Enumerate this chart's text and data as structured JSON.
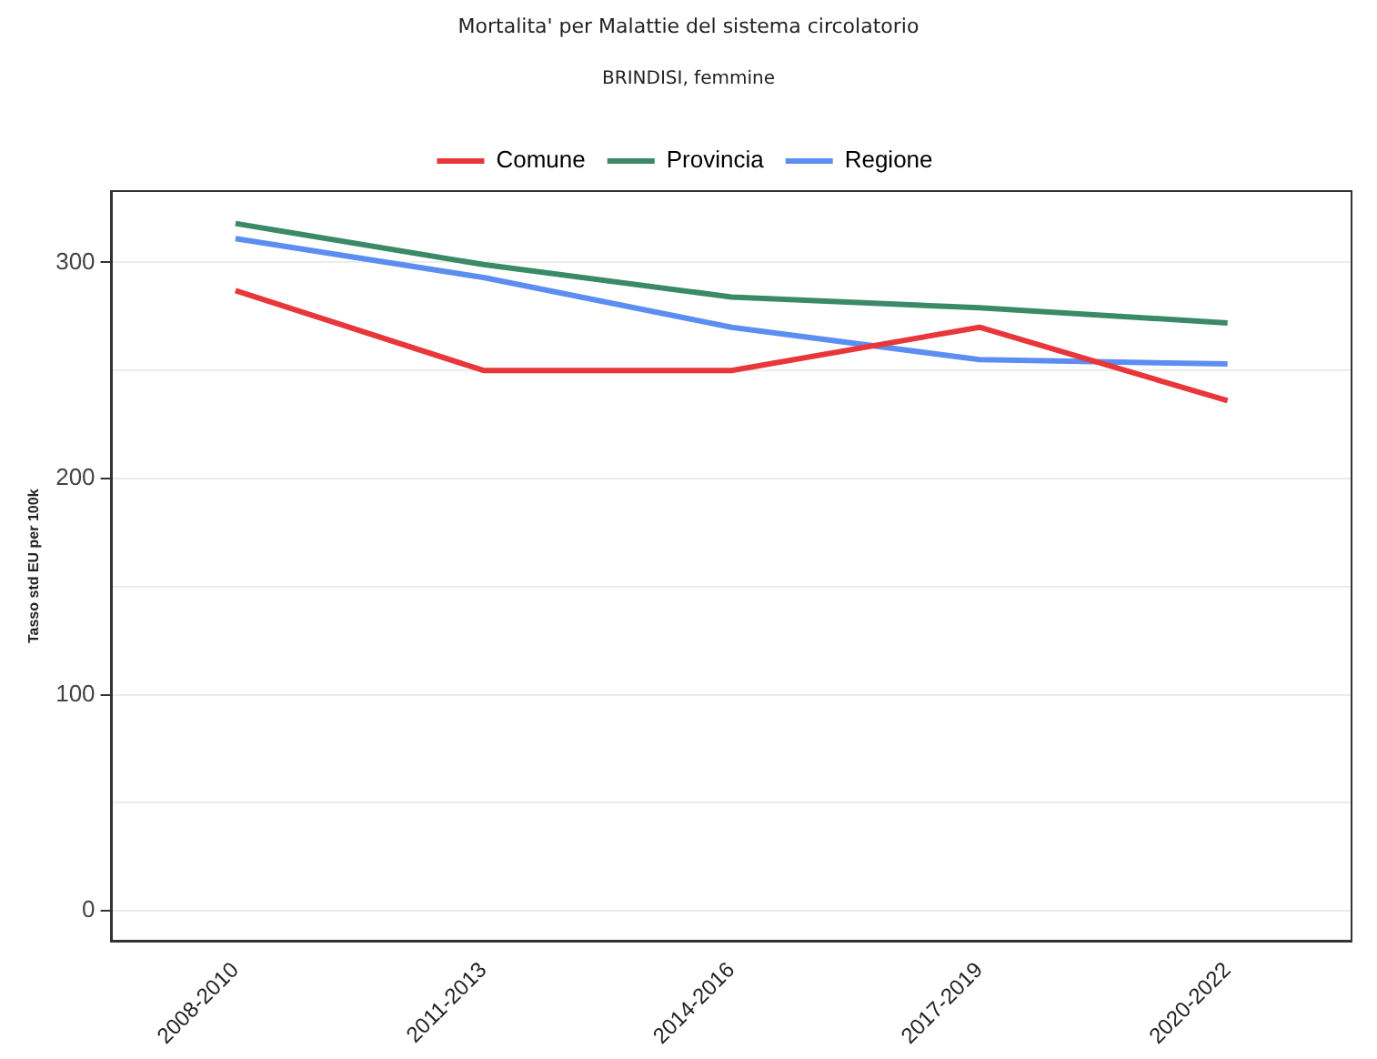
{
  "chart_data": {
    "type": "line",
    "title": "Mortalita' per Malattie del sistema circolatorio",
    "subtitle": "BRINDISI, femmine",
    "ylabel": "Tasso std EU per 100k",
    "categories": [
      "2008-2010",
      "2011-2013",
      "2014-2016",
      "2017-2019",
      "2020-2022"
    ],
    "series": [
      {
        "name": "Comune",
        "color": "#e8373a",
        "values": [
          287,
          250,
          250,
          270,
          236
        ]
      },
      {
        "name": "Provincia",
        "color": "#3a8a68",
        "values": [
          318,
          299,
          284,
          279,
          272
        ]
      },
      {
        "name": "Regione",
        "color": "#5b8ef0",
        "values": [
          311,
          293,
          270,
          255,
          253
        ]
      }
    ],
    "ylim": [
      -14,
      333
    ],
    "yticks": [
      0,
      {
        "value": 50,
        "label": null
      },
      100,
      {
        "value": 150,
        "label": null
      },
      200,
      {
        "value": 250,
        "label": null
      },
      300
    ],
    "grid": "y",
    "legend": "top",
    "marker": "none",
    "line_style": "solid"
  }
}
